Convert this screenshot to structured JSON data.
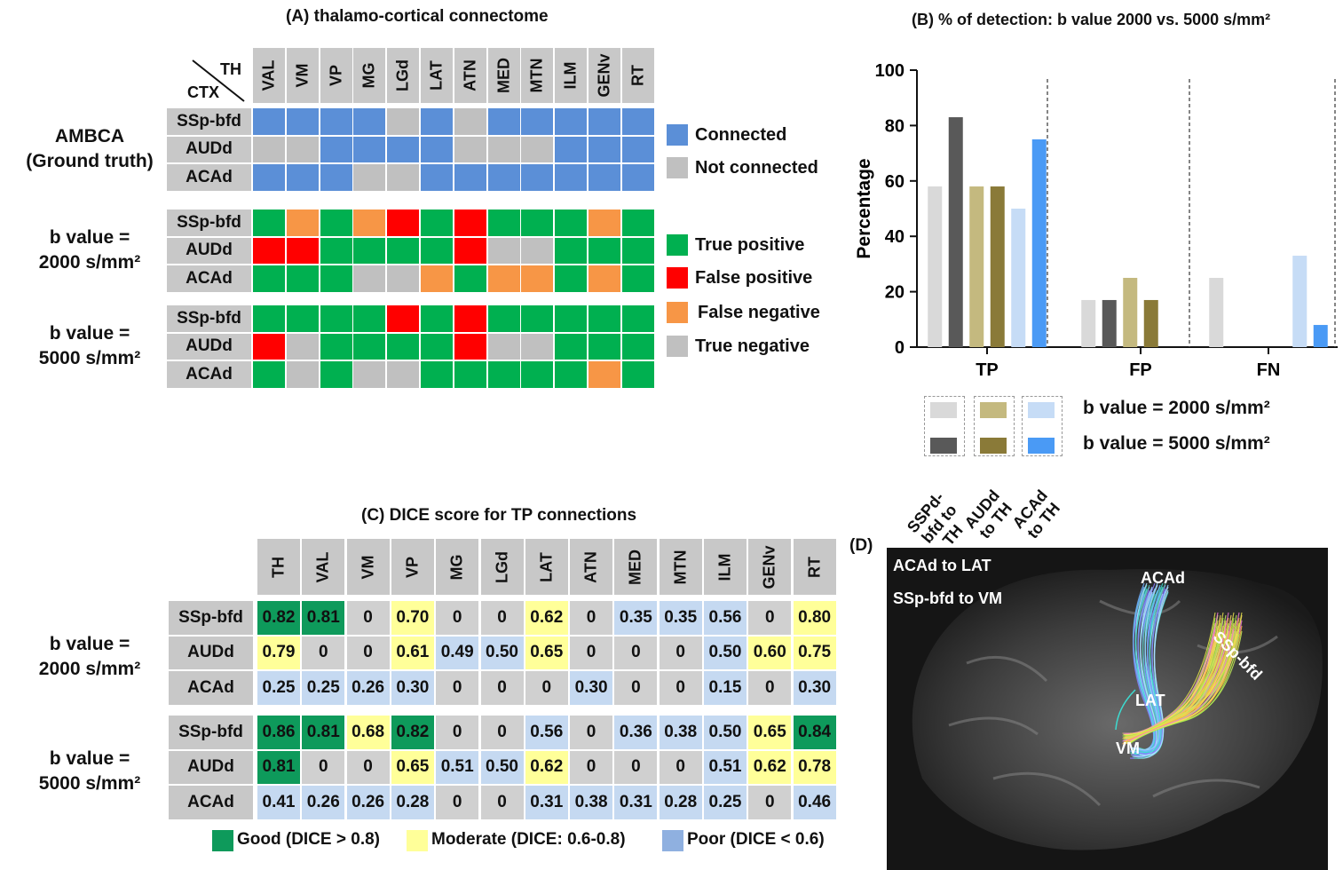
{
  "panel_a": {
    "title": "(A) thalamo-cortical connectome",
    "corner_th": "TH",
    "corner_ctx": "CTX",
    "columns": [
      "VAL",
      "VM",
      "VP",
      "MG",
      "LGd",
      "LAT",
      "ATN",
      "MED",
      "MTN",
      "ILM",
      "GENv",
      "RT"
    ],
    "rows": [
      "SSp-bfd",
      "AUDd",
      "ACAd"
    ],
    "groups": [
      {
        "label_line1": "AMBCA",
        "label_line2": "(Ground truth)",
        "matrix": [
          [
            "C",
            "C",
            "C",
            "C",
            "N",
            "C",
            "N",
            "C",
            "C",
            "C",
            "C",
            "C"
          ],
          [
            "N",
            "N",
            "C",
            "C",
            "C",
            "C",
            "N",
            "N",
            "N",
            "C",
            "C",
            "C"
          ],
          [
            "C",
            "C",
            "C",
            "N",
            "N",
            "C",
            "C",
            "C",
            "C",
            "C",
            "C",
            "C"
          ]
        ]
      },
      {
        "label_line1": "b value =",
        "label_line2": "2000 s/mm²",
        "matrix": [
          [
            "TP",
            "FN",
            "TP",
            "FN",
            "FP",
            "TP",
            "FP",
            "TP",
            "TP",
            "TP",
            "FN",
            "TP"
          ],
          [
            "FP",
            "FP",
            "TP",
            "TP",
            "TP",
            "TP",
            "FP",
            "TN",
            "TN",
            "TP",
            "TP",
            "TP"
          ],
          [
            "TP",
            "TP",
            "TP",
            "TN",
            "TN",
            "FN",
            "TP",
            "FN",
            "FN",
            "TP",
            "FN",
            "TP"
          ]
        ]
      },
      {
        "label_line1": "b value =",
        "label_line2": "5000 s/mm²",
        "matrix": [
          [
            "TP",
            "TP",
            "TP",
            "TP",
            "FP",
            "TP",
            "FP",
            "TP",
            "TP",
            "TP",
            "TP",
            "TP"
          ],
          [
            "FP",
            "TN",
            "TP",
            "TP",
            "TP",
            "TP",
            "FP",
            "TN",
            "TN",
            "TP",
            "TP",
            "TP"
          ],
          [
            "TP",
            "TN",
            "TP",
            "TN",
            "TN",
            "TP",
            "TP",
            "TP",
            "TP",
            "TP",
            "FN",
            "TP"
          ]
        ]
      }
    ],
    "legend_connect": [
      {
        "key": "C",
        "label": "Connected"
      },
      {
        "key": "N",
        "label": "Not connected"
      }
    ],
    "legend_detect": [
      {
        "key": "TP",
        "label": "True positive"
      },
      {
        "key": "FP",
        "label": "False positive"
      },
      {
        "key": "FN",
        "label": "False negative"
      },
      {
        "key": "TN",
        "label": "True negative"
      }
    ],
    "colors": {
      "C": "#5b8fd7",
      "N": "#c0c0c0",
      "TP": "#00b050",
      "FP": "#ff0000",
      "FN": "#f79646",
      "TN": "#c0c0c0"
    }
  },
  "chart_data": {
    "type": "bar",
    "title": "(B) % of detection: b value 2000 vs. 5000 s/mm²",
    "ylabel": "Percentage",
    "xlabel": "",
    "ylim": [
      0,
      100
    ],
    "yticks": [
      0,
      20,
      40,
      60,
      80,
      100
    ],
    "categories": [
      "TP",
      "FP",
      "FN"
    ],
    "series": [
      {
        "name": "SSPd-bfd to TH, b value = 2000 s/mm²",
        "color": "#d9d9d9",
        "values": [
          58,
          17,
          25
        ]
      },
      {
        "name": "SSPd-bfd to TH, b value = 5000 s/mm²",
        "color": "#595959",
        "values": [
          83,
          17,
          0
        ]
      },
      {
        "name": "AUDd to TH, b value = 2000 s/mm²",
        "color": "#c4b97f",
        "values": [
          58,
          25,
          0
        ]
      },
      {
        "name": "AUDd to TH, b value = 5000 s/mm²",
        "color": "#8a7a38",
        "values": [
          58,
          17,
          0
        ]
      },
      {
        "name": "ACAd to TH, b value = 2000 s/mm²",
        "color": "#c6dcf6",
        "values": [
          50,
          0,
          33
        ]
      },
      {
        "name": "ACAd to TH, b value = 5000 s/mm²",
        "color": "#4a9af5",
        "values": [
          75,
          0,
          8
        ]
      }
    ],
    "legend_rows": [
      "b value = 2000 s/mm²",
      "b value = 5000 s/mm²"
    ],
    "legend_cols": [
      "SSPd-bfd to TH",
      "AUDd to TH",
      "ACAd to TH"
    ]
  },
  "panel_c": {
    "title": "(C) DICE score for TP connections",
    "columns": [
      "TH",
      "VAL",
      "VM",
      "VP",
      "MG",
      "LGd",
      "LAT",
      "ATN",
      "MED",
      "MTN",
      "ILM",
      "GENv",
      "RT"
    ],
    "rows": [
      "SSp-bfd",
      "AUDd",
      "ACAd"
    ],
    "groups": [
      {
        "label_line1": "b value =",
        "label_line2": "2000 s/mm²",
        "values": [
          [
            "0.82",
            "0.81",
            "0",
            "0.70",
            "0",
            "0",
            "0.62",
            "0",
            "0.35",
            "0.35",
            "0.56",
            "0",
            "0.80"
          ],
          [
            "0.79",
            "0",
            "0",
            "0.61",
            "0.49",
            "0.50",
            "0.65",
            "0",
            "0",
            "0",
            "0.50",
            "0.60",
            "0.75"
          ],
          [
            "0.25",
            "0.25",
            "0.26",
            "0.30",
            "0",
            "0",
            "0",
            "0.30",
            "0",
            "0",
            "0.15",
            "0",
            "0.30"
          ]
        ],
        "classes": [
          [
            "G",
            "G",
            "Z",
            "M",
            "Z",
            "Z",
            "M",
            "Z",
            "P",
            "P",
            "P",
            "Z",
            "M"
          ],
          [
            "M",
            "Z",
            "Z",
            "M",
            "P",
            "P",
            "M",
            "Z",
            "Z",
            "Z",
            "P",
            "M",
            "M"
          ],
          [
            "P",
            "P",
            "P",
            "P",
            "Z",
            "Z",
            "Z",
            "P",
            "Z",
            "Z",
            "P",
            "Z",
            "P"
          ]
        ]
      },
      {
        "label_line1": "b value =",
        "label_line2": "5000 s/mm²",
        "values": [
          [
            "0.86",
            "0.81",
            "0.68",
            "0.82",
            "0",
            "0",
            "0.56",
            "0",
            "0.36",
            "0.38",
            "0.50",
            "0.65",
            "0.84"
          ],
          [
            "0.81",
            "0",
            "0",
            "0.65",
            "0.51",
            "0.50",
            "0.62",
            "0",
            "0",
            "0",
            "0.51",
            "0.62",
            "0.78"
          ],
          [
            "0.41",
            "0.26",
            "0.26",
            "0.28",
            "0",
            "0",
            "0.31",
            "0.38",
            "0.31",
            "0.28",
            "0.25",
            "0",
            "0.46"
          ]
        ],
        "classes": [
          [
            "G",
            "G",
            "M",
            "G",
            "Z",
            "Z",
            "P",
            "Z",
            "P",
            "P",
            "P",
            "M",
            "G"
          ],
          [
            "G",
            "Z",
            "Z",
            "M",
            "P",
            "P",
            "M",
            "Z",
            "Z",
            "Z",
            "P",
            "M",
            "M"
          ],
          [
            "P",
            "P",
            "P",
            "P",
            "Z",
            "Z",
            "P",
            "P",
            "P",
            "P",
            "P",
            "Z",
            "P"
          ]
        ]
      }
    ],
    "legend": [
      {
        "key": "G",
        "label": "Good (DICE > 0.8)"
      },
      {
        "key": "M",
        "label": "Moderate (DICE: 0.6-0.8)"
      },
      {
        "key": "P",
        "label": "Poor (DICE < 0.6)"
      }
    ],
    "colors": {
      "G": "#0e9a5b",
      "M": "#ffff99",
      "P": "#c5d9f1",
      "Z": "#d0d0d0"
    }
  },
  "panel_d": {
    "title": "(D)",
    "caption_line1": "ACAd to LAT",
    "caption_line2": "SSp-bfd to VM",
    "labels": [
      "ACAd",
      "SSp-bfd",
      "LAT",
      "VM"
    ]
  }
}
